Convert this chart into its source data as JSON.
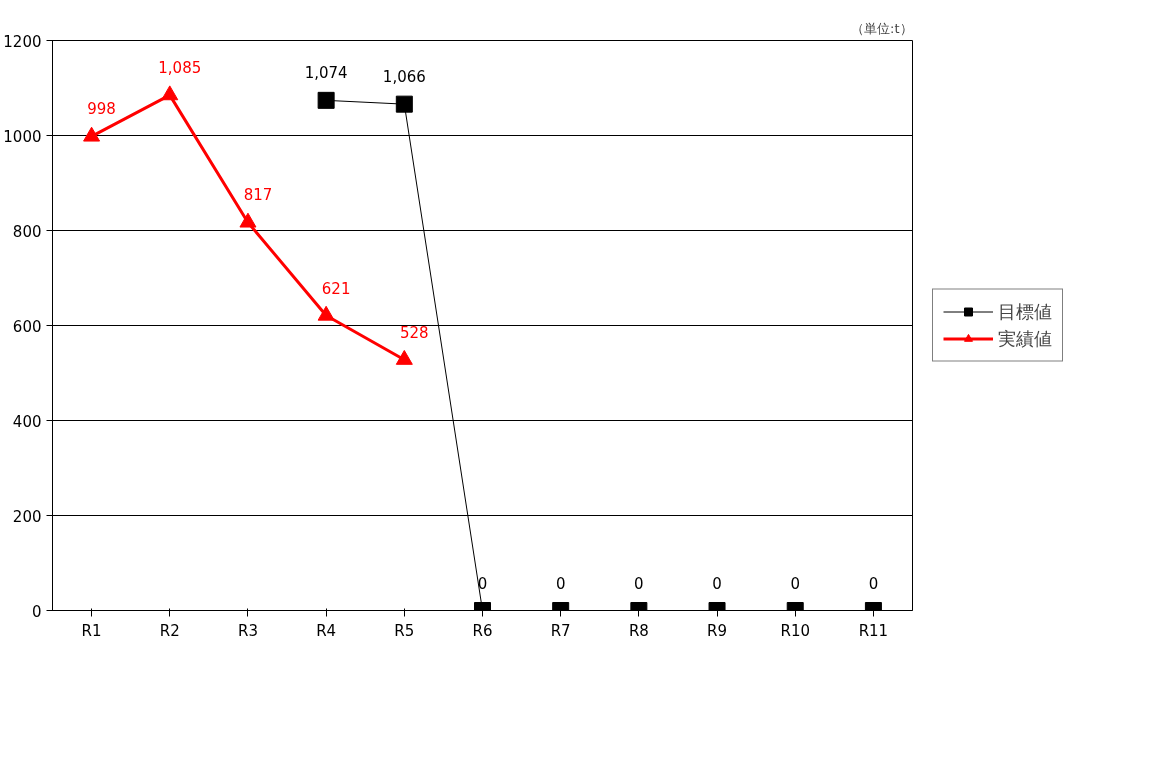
{
  "chart_data": {
    "type": "line",
    "categories": [
      "R1",
      "R2",
      "R3",
      "R4",
      "R5",
      "R6",
      "R7",
      "R8",
      "R9",
      "R10",
      "R11"
    ],
    "series": [
      {
        "name": "目標値",
        "color": "#000000",
        "marker": "square",
        "values": [
          null,
          null,
          null,
          1074,
          1066,
          0,
          0,
          0,
          0,
          0,
          0
        ],
        "value_labels": [
          null,
          null,
          null,
          "1,074",
          "1,066",
          "0",
          "0",
          "0",
          "0",
          "0",
          "0"
        ]
      },
      {
        "name": "実績値",
        "color": "#ff0000",
        "marker": "triangle",
        "values": [
          998,
          1085,
          817,
          621,
          528,
          null,
          null,
          null,
          null,
          null,
          null
        ],
        "value_labels": [
          "998",
          "1,085",
          "817",
          "621",
          "528",
          null,
          null,
          null,
          null,
          null,
          null
        ]
      }
    ],
    "ylim": [
      0,
      1200
    ],
    "yticks": [
      0,
      200,
      400,
      600,
      800,
      1000,
      1200
    ],
    "grid": "y",
    "legend": "right",
    "annotations": [
      "（単位:t）"
    ]
  }
}
